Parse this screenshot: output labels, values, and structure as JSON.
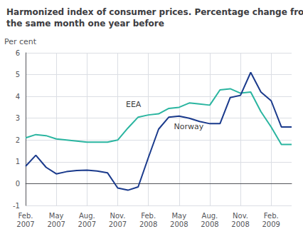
{
  "chart_data": {
    "type": "line",
    "title": "Harmonized index of consumer prices. Percentage change from\nthe same month one year before",
    "ylabel": "Per cent",
    "categories": [
      "Feb.\n2007",
      null,
      null,
      "May\n2007",
      null,
      null,
      "Aug.\n2007",
      null,
      null,
      "Nov.\n2007",
      null,
      null,
      "Feb.\n2008",
      null,
      null,
      "May\n2008",
      null,
      null,
      "Aug.\n2008",
      null,
      null,
      "Nov.\n2008",
      null,
      null,
      "Feb.\n2009",
      null,
      null
    ],
    "series": [
      {
        "name": "EEA",
        "color": "#2ab5a0",
        "values": [
          2.1,
          2.25,
          2.2,
          2.05,
          2.0,
          1.95,
          1.9,
          1.9,
          1.9,
          2.0,
          2.55,
          3.05,
          3.15,
          3.2,
          3.45,
          3.5,
          3.7,
          3.65,
          3.6,
          4.3,
          4.35,
          4.15,
          4.2,
          3.3,
          2.6,
          1.8,
          1.8
        ]
      },
      {
        "name": "Norway",
        "color": "#1a3a8c",
        "values": [
          0.8,
          1.3,
          0.75,
          0.45,
          0.55,
          0.6,
          0.62,
          0.58,
          0.5,
          -0.2,
          -0.3,
          -0.15,
          1.2,
          2.5,
          3.05,
          3.1,
          3.0,
          2.85,
          2.75,
          2.75,
          3.95,
          4.05,
          5.1,
          4.2,
          3.8,
          2.6,
          2.6
        ]
      }
    ],
    "annotations": [
      {
        "text": "EEA",
        "x": 9.8,
        "y": 3.45
      },
      {
        "text": "Norway",
        "x": 14.5,
        "y": 2.45
      }
    ],
    "ylim": [
      -1,
      6
    ],
    "yticks": [
      -1,
      0,
      1,
      2,
      3,
      4,
      5,
      6
    ],
    "grid": true
  }
}
